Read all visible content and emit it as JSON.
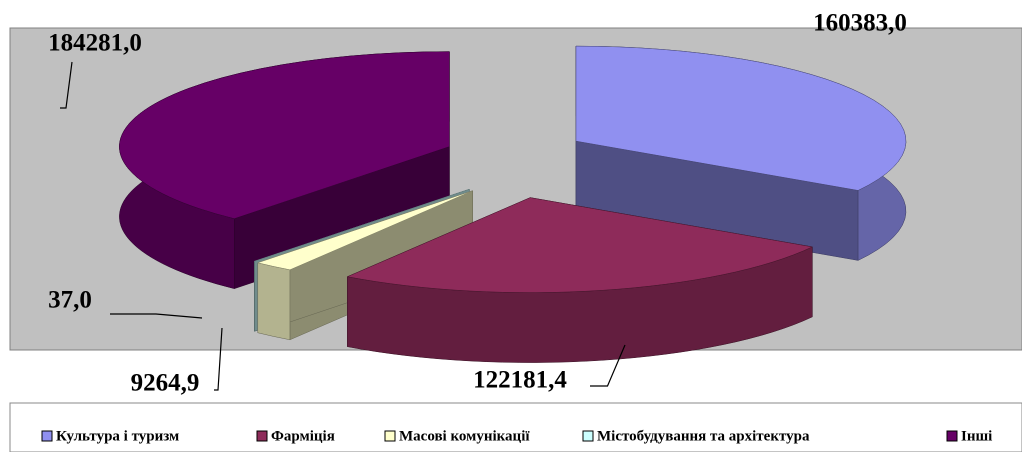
{
  "chart_data": {
    "type": "pie",
    "categories": [
      "Культура і туризм",
      "Фарміція",
      "Масові комунікації",
      "Містобудування та архітектура",
      "Інші"
    ],
    "values": [
      160383.0,
      122181.4,
      9264.9,
      37.0,
      184281.0
    ],
    "value_labels": [
      "160383,0",
      "122181,4",
      "9264,9",
      "37,0",
      "184281,0"
    ],
    "colors": [
      "#9090f0",
      "#8e2b5a",
      "#ffffcc",
      "#ccffff",
      "#660066"
    ],
    "legend": "bottom"
  }
}
